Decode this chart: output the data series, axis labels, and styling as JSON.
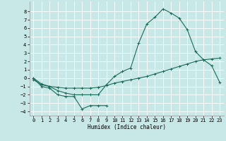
{
  "xlabel": "Humidex (Indice chaleur)",
  "bg_color": "#c8e8e8",
  "grid_color": "#ffffff",
  "line_color": "#1a6b5a",
  "ylim": [
    -4.5,
    9.2
  ],
  "xlim": [
    -0.5,
    23.5
  ],
  "yticks": [
    -4,
    -3,
    -2,
    -1,
    0,
    1,
    2,
    3,
    4,
    5,
    6,
    7,
    8
  ],
  "xticks": [
    0,
    1,
    2,
    3,
    4,
    5,
    6,
    7,
    8,
    9,
    10,
    11,
    12,
    13,
    14,
    15,
    16,
    17,
    18,
    19,
    20,
    21,
    22,
    23
  ],
  "line1_x": [
    0,
    1,
    2,
    3,
    4,
    5,
    6,
    7,
    8,
    9
  ],
  "line1_y": [
    0.0,
    -1.0,
    -1.2,
    -2.0,
    -2.2,
    -2.2,
    -3.7,
    -3.3,
    -3.3,
    -3.3
  ],
  "line2_x": [
    0,
    1,
    2,
    3,
    4,
    5,
    6,
    7,
    8,
    9,
    10,
    11,
    12,
    13,
    14,
    15,
    16,
    17,
    18,
    19,
    20,
    21,
    22,
    23
  ],
  "line2_y": [
    -0.2,
    -0.8,
    -1.0,
    -1.1,
    -1.2,
    -1.2,
    -1.2,
    -1.2,
    -1.1,
    -0.9,
    -0.6,
    -0.4,
    -0.2,
    0.0,
    0.2,
    0.5,
    0.8,
    1.1,
    1.4,
    1.7,
    2.0,
    2.2,
    2.3,
    2.4
  ],
  "line3_x": [
    0,
    1,
    2,
    3,
    4,
    5,
    6,
    7,
    8,
    9,
    10,
    11,
    12,
    13,
    14,
    15,
    16,
    17,
    18,
    19,
    20,
    21,
    22,
    23
  ],
  "line3_y": [
    0.0,
    -0.7,
    -1.0,
    -1.5,
    -1.8,
    -2.0,
    -2.0,
    -2.0,
    -2.0,
    -0.8,
    0.2,
    0.8,
    1.2,
    4.2,
    6.5,
    7.3,
    8.3,
    7.8,
    7.2,
    5.8,
    3.2,
    2.2,
    1.5,
    -0.5
  ]
}
